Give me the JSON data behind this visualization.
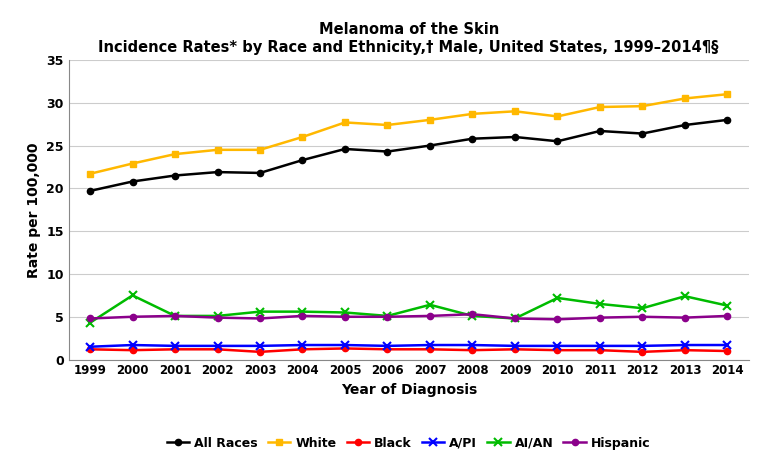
{
  "title_line1": "Melanoma of the Skin",
  "title_line2": "Incidence Rates* by Race and Ethnicity,† Male, United States, 1999–2014¶§",
  "xlabel": "Year of Diagnosis",
  "ylabel": "Rate per 100,000",
  "years": [
    1999,
    2000,
    2001,
    2002,
    2003,
    2004,
    2005,
    2006,
    2007,
    2008,
    2009,
    2010,
    2011,
    2012,
    2013,
    2014
  ],
  "all_races": [
    19.7,
    20.8,
    21.5,
    21.9,
    21.8,
    23.3,
    24.6,
    24.3,
    25.0,
    25.8,
    26.0,
    25.5,
    26.7,
    26.4,
    27.4,
    28.0
  ],
  "white": [
    21.7,
    22.9,
    24.0,
    24.5,
    24.5,
    26.0,
    27.7,
    27.4,
    28.0,
    28.7,
    29.0,
    28.4,
    29.5,
    29.6,
    30.5,
    31.0
  ],
  "black": [
    1.2,
    1.1,
    1.2,
    1.2,
    0.9,
    1.2,
    1.3,
    1.2,
    1.2,
    1.1,
    1.2,
    1.1,
    1.1,
    0.9,
    1.1,
    1.0
  ],
  "api": [
    1.5,
    1.7,
    1.6,
    1.6,
    1.6,
    1.7,
    1.7,
    1.6,
    1.7,
    1.7,
    1.6,
    1.6,
    1.6,
    1.6,
    1.7,
    1.7
  ],
  "aian": [
    4.3,
    7.5,
    5.1,
    5.1,
    5.6,
    5.6,
    5.5,
    5.1,
    6.4,
    5.1,
    4.8,
    7.2,
    6.5,
    6.0,
    7.4,
    6.3
  ],
  "hispanic": [
    4.8,
    5.0,
    5.1,
    4.9,
    4.8,
    5.1,
    5.0,
    5.0,
    5.1,
    5.3,
    4.8,
    4.7,
    4.9,
    5.0,
    4.9,
    5.1
  ],
  "colors": {
    "all_races": "#000000",
    "white": "#FFB800",
    "black": "#FF0000",
    "api": "#0000FF",
    "aian": "#00BB00",
    "hispanic": "#8B008B"
  },
  "ylim": [
    0,
    35
  ],
  "yticks": [
    0,
    5,
    10,
    15,
    20,
    25,
    30,
    35
  ]
}
